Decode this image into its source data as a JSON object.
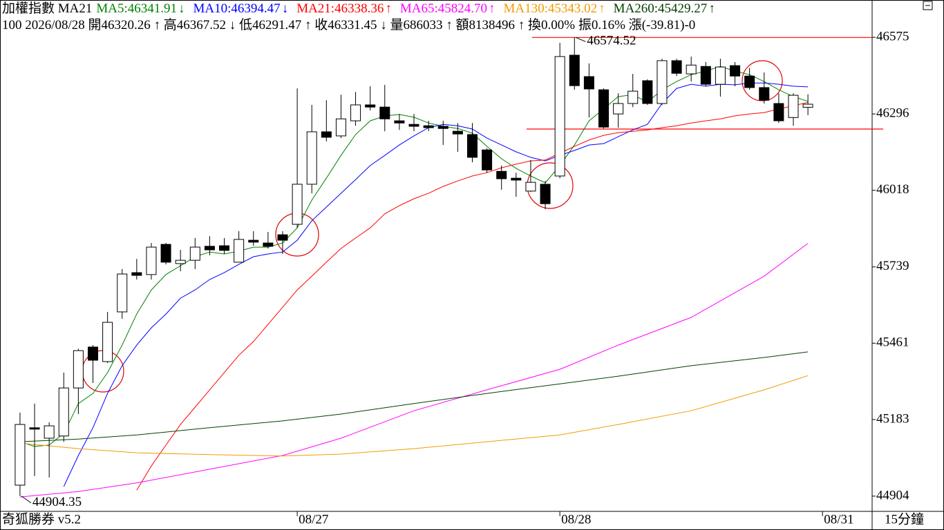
{
  "chart_data": {
    "type": "candlestick",
    "title": "加權指數 MA21",
    "info": "100 2026/08/28 開46320.26 ↑ 高46367.52 ↓ 低46291.47 ↑ 收46331.45 ↓ 量686033 ↑ 額8138496 ↑ 換0.00% 振0.16% 漲(-39.81)-0",
    "xlim": [
      -1.37,
      58.4
    ],
    "ylim": [
      44851,
      46711
    ],
    "yticks": [
      44904,
      45183,
      45461,
      45739,
      46018,
      46296,
      46575
    ],
    "xticks": [
      {
        "value": 19,
        "label": "08/27"
      },
      {
        "value": 37,
        "label": "08/28"
      },
      {
        "value": 55,
        "label": "08/31"
      }
    ],
    "candle_color": "#000000",
    "up_fill": "#ffffff",
    "down_fill": "#000000",
    "open": [
      44944,
      45153,
      45115,
      45123,
      45298,
      45447,
      45394,
      45575,
      45718,
      45711,
      45821,
      45751,
      45763,
      45814,
      45816,
      45756,
      45836,
      45826,
      45856,
      45894,
      46040,
      46231,
      46216,
      46271,
      46329,
      46321,
      46271,
      46258,
      46253,
      46251,
      46233,
      46221,
      46165,
      46087,
      46062,
      46015,
      46040,
      46070,
      46510,
      46432,
      46384,
      46296,
      46334,
      46417,
      46334,
      46490,
      46442,
      46469,
      46404,
      46472,
      46434,
      46392,
      46334,
      46283,
      46320.26
    ],
    "high": [
      45208,
      45241,
      45173,
      45354,
      45441,
      45454,
      45575,
      45731,
      45768,
      45826,
      45826,
      45801,
      45844,
      45851,
      45844,
      45869,
      45869,
      45866,
      45869,
      46389,
      46329,
      46346,
      46366,
      46376,
      46397,
      46402,
      46296,
      46296,
      46271,
      46271,
      46263,
      46263,
      46171,
      46108,
      46082,
      46128,
      46052,
      46555,
      46574.52,
      46480,
      46389,
      46371,
      46442,
      46422,
      46497,
      46497,
      46505,
      46485,
      46497,
      46485,
      46464,
      46447,
      46371,
      46371,
      46367.52
    ],
    "low": [
      44904.35,
      44977,
      44972,
      45102,
      45203,
      45316,
      45389,
      45550,
      45693,
      45693,
      45748,
      45723,
      45731,
      45781,
      45786,
      45756,
      45816,
      45806,
      45786,
      45881,
      46007,
      46196,
      46208,
      46253,
      46309,
      46233,
      46238,
      46233,
      46233,
      46183,
      46158,
      46120,
      46082,
      46020,
      45994,
      46012,
      45949,
      46062,
      46384,
      46283,
      46243,
      46246,
      46321,
      46329,
      46329,
      46434,
      46414,
      46397,
      46359,
      46397,
      46384,
      46334,
      46263,
      46253,
      46291.47
    ],
    "close": [
      45165,
      45148,
      45160,
      45298,
      45434,
      45399,
      45537,
      45713,
      45708,
      45811,
      45756,
      45763,
      45811,
      45801,
      45799,
      45839,
      45829,
      45814,
      45836,
      46040,
      46231,
      46211,
      46278,
      46329,
      46321,
      46278,
      46263,
      46251,
      46246,
      46243,
      46223,
      46138,
      46092,
      46060,
      46055,
      46047,
      45969,
      46505,
      46399,
      46387,
      46248,
      46334,
      46379,
      46334,
      46490,
      46444,
      46474,
      46404,
      46467,
      46434,
      46392,
      46346,
      46271,
      46364,
      46331.45
    ],
    "series": [
      {
        "name": "MA5:46341.91",
        "arrow": "↓",
        "color": "#008000",
        "values": [
          45102,
          45085,
          45090,
          45133,
          45241,
          45278,
          45354,
          45454,
          45567,
          45655,
          45711,
          45743,
          45776,
          45793,
          45786,
          45796,
          45811,
          45811,
          45826,
          45881,
          45982,
          46062,
          46145,
          46221,
          46271,
          46289,
          46294,
          46284,
          46263,
          46251,
          46243,
          46226,
          46178,
          46133,
          46098,
          46070,
          46045,
          46108,
          46183,
          46271,
          46314,
          46359,
          46366,
          46339,
          46384,
          46414,
          46439,
          46452,
          46469,
          46452,
          46439,
          46414,
          46384,
          46359,
          46341.91
        ]
      },
      {
        "name": "MA10:46394.47",
        "arrow": "↓",
        "color": "#0000ff",
        "values": [
          null,
          null,
          null,
          44939,
          45052,
          45153,
          45278,
          45379,
          45454,
          45517,
          45567,
          45625,
          45655,
          45693,
          45718,
          45748,
          45776,
          45786,
          45793,
          45836,
          45907,
          45957,
          46007,
          46057,
          46108,
          46145,
          46183,
          46216,
          46246,
          46258,
          46253,
          46241,
          46208,
          46183,
          46158,
          46138,
          46125,
          46145,
          46163,
          46183,
          46188,
          46213,
          46238,
          46258,
          46334,
          46389,
          46404,
          46397,
          46404,
          46402,
          46409,
          46409,
          46404,
          46397,
          46394.47
        ]
      },
      {
        "name": "MA21:46338.36",
        "arrow": "↑",
        "color": "#ff0000",
        "values": [
          null,
          null,
          null,
          null,
          null,
          null,
          null,
          null,
          44926,
          45014,
          45090,
          45165,
          45228,
          45291,
          45354,
          45417,
          45467,
          45530,
          45592,
          45655,
          45705,
          45756,
          45806,
          45844,
          45881,
          45932,
          45962,
          45987,
          46007,
          46032,
          46052,
          46070,
          46082,
          46100,
          46113,
          46125,
          46128,
          46153,
          46178,
          46201,
          46218,
          46228,
          46233,
          46238,
          46246,
          46253,
          46263,
          46271,
          46278,
          46289,
          46296,
          46301,
          46314,
          46326,
          46338.36
        ]
      },
      {
        "name": "MA65:45824.70",
        "arrow": "↑",
        "color": "#ff00ff",
        "x": [
          0,
          4,
          8,
          13,
          18,
          22,
          27,
          32,
          37,
          41,
          46,
          51,
          54
        ],
        "values": [
          44901,
          44921,
          44952,
          45002,
          45052,
          45115,
          45215,
          45291,
          45366,
          45454,
          45555,
          45705,
          45824.7
        ]
      },
      {
        "name": "MA130:45343.02",
        "arrow": "↑",
        "color": "#f29a00",
        "x": [
          0,
          4,
          8,
          13,
          18,
          22,
          27,
          32,
          37,
          41,
          46,
          51,
          54
        ],
        "values": [
          45097,
          45077,
          45062,
          45055,
          45050,
          45057,
          45077,
          45102,
          45127,
          45165,
          45215,
          45291,
          45343.02
        ]
      },
      {
        "name": "MA260:45429.27",
        "arrow": "↑",
        "color": "#004000",
        "x": [
          0,
          4,
          8,
          13,
          18,
          22,
          27,
          32,
          37,
          41,
          46,
          51,
          54
        ],
        "values": [
          45102,
          45112,
          45127,
          45153,
          45178,
          45203,
          45241,
          45278,
          45313,
          45341,
          45379,
          45409,
          45429.27
        ]
      }
    ],
    "reference_lines": [
      46574.52,
      46241
    ],
    "reference_color": "#ff0000",
    "annotations": [
      {
        "text": "46574.52",
        "value": 46574.52,
        "x": 38
      },
      {
        "text": "44904.35",
        "value": 44904.35,
        "x": 0
      }
    ]
  },
  "footer": {
    "app": "奇狐勝券 v5.2",
    "period": "15分鐘"
  }
}
